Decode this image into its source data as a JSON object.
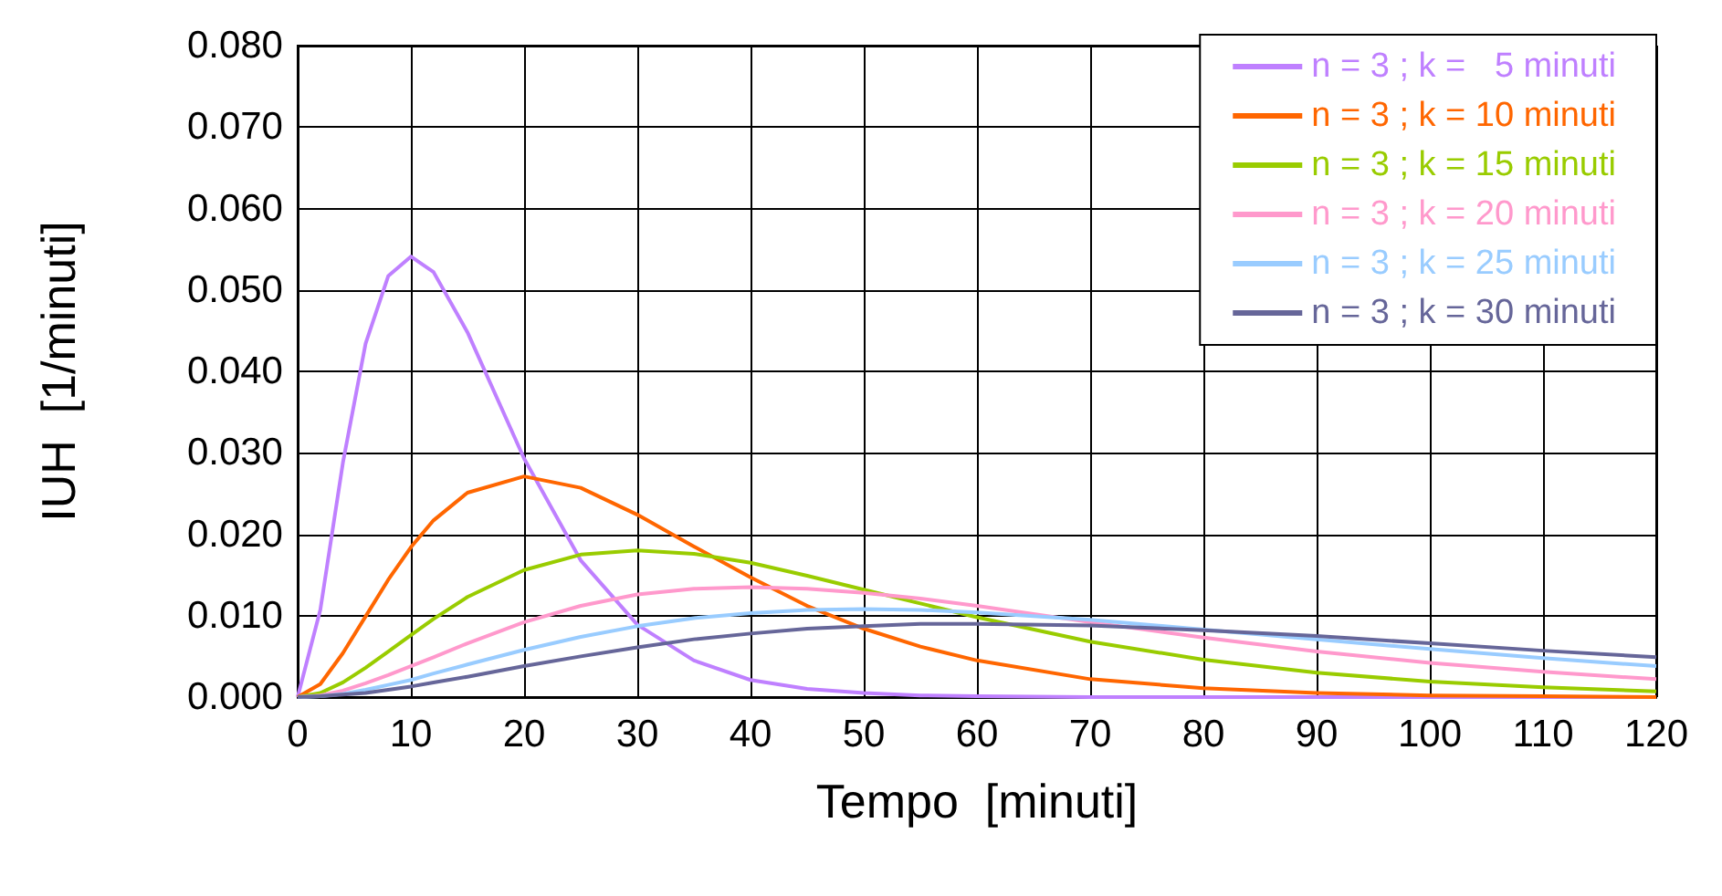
{
  "chart_data": {
    "type": "line",
    "xlabel": "Tempo  [minuti]",
    "ylabel": "IUH  [1/minuti]",
    "x": [
      0,
      2,
      4,
      6,
      8,
      10,
      12,
      15,
      20,
      25,
      30,
      35,
      40,
      45,
      50,
      55,
      60,
      70,
      80,
      90,
      100,
      110,
      120
    ],
    "xlim": [
      0,
      120
    ],
    "xticks": [
      0,
      10,
      20,
      30,
      40,
      50,
      60,
      70,
      80,
      90,
      100,
      110,
      120
    ],
    "ylim": [
      0,
      0.08
    ],
    "yticks": [
      {
        "value": 0,
        "label": "0.000"
      },
      {
        "value": 0.01,
        "label": "0.010"
      },
      {
        "value": 0.02,
        "label": "0.020"
      },
      {
        "value": 0.03,
        "label": "0.030"
      },
      {
        "value": 0.04,
        "label": "0.040"
      },
      {
        "value": 0.05,
        "label": "0.050"
      },
      {
        "value": 0.06,
        "label": "0.060"
      },
      {
        "value": 0.07,
        "label": "0.070"
      },
      {
        "value": 0.08,
        "label": "0.080"
      }
    ],
    "grid": true,
    "legend": "top right",
    "marker": "none",
    "line_style": "solid",
    "series": [
      {
        "name": "n = 3 ; k =   5 minuti",
        "color": "#bf80ff",
        "values": [
          0,
          0.0107,
          0.0288,
          0.0434,
          0.0517,
          0.0541,
          0.0522,
          0.0448,
          0.0293,
          0.0168,
          0.0089,
          0.0045,
          0.0021,
          0.001,
          0.0005,
          0.0002,
          0.0001,
          0,
          0,
          0,
          0,
          0,
          0
        ]
      },
      {
        "name": "n = 3 ; k = 10 minuti",
        "color": "#ff6600",
        "values": [
          0,
          0.0016,
          0.0054,
          0.0099,
          0.0144,
          0.0184,
          0.0217,
          0.0251,
          0.0271,
          0.0257,
          0.0224,
          0.0185,
          0.0147,
          0.0112,
          0.0084,
          0.0062,
          0.0045,
          0.0022,
          0.0011,
          0.0005,
          0.0002,
          0.0001,
          0
        ]
      },
      {
        "name": "n = 3 ; k = 15 minuti",
        "color": "#99cc00",
        "values": [
          0,
          0.0005,
          0.0018,
          0.0036,
          0.0056,
          0.0076,
          0.0096,
          0.0123,
          0.0156,
          0.0175,
          0.018,
          0.0176,
          0.0165,
          0.0149,
          0.0132,
          0.0115,
          0.0098,
          0.0068,
          0.0046,
          0.003,
          0.0019,
          0.0012,
          0.0007
        ]
      },
      {
        "name": "n = 3 ; k = 20 minuti",
        "color": "#ff99cc",
        "values": [
          0,
          0.0002,
          0.0008,
          0.0017,
          0.0027,
          0.0038,
          0.0049,
          0.0066,
          0.0092,
          0.0112,
          0.0126,
          0.0133,
          0.0135,
          0.0133,
          0.0128,
          0.0121,
          0.0112,
          0.0092,
          0.0073,
          0.0056,
          0.0042,
          0.0031,
          0.0022
        ]
      },
      {
        "name": "n = 3 ; k = 25 minuti",
        "color": "#99ccff",
        "values": [
          0,
          0.0001,
          0.0004,
          0.0009,
          0.0015,
          0.0021,
          0.0029,
          0.004,
          0.0058,
          0.0074,
          0.0087,
          0.0097,
          0.0103,
          0.0107,
          0.0108,
          0.0107,
          0.0104,
          0.0095,
          0.0083,
          0.0071,
          0.0059,
          0.0048,
          0.0038
        ]
      },
      {
        "name": "n = 3 ; k = 30 minuti",
        "color": "#666699",
        "values": [
          0,
          0.0001,
          0.0003,
          0.0005,
          0.0009,
          0.0013,
          0.0018,
          0.0025,
          0.0038,
          0.005,
          0.0061,
          0.0071,
          0.0078,
          0.0084,
          0.0087,
          0.009,
          0.009,
          0.0088,
          0.0082,
          0.0075,
          0.0066,
          0.0057,
          0.0049
        ]
      }
    ]
  }
}
